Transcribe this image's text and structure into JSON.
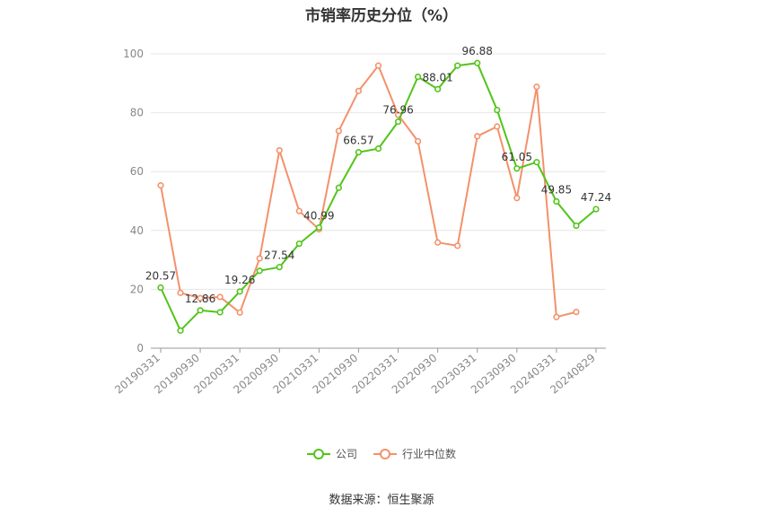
{
  "chart_data": {
    "type": "line",
    "title": "市销率历史分位（%）",
    "ylim": [
      0,
      100
    ],
    "yticks": [
      0,
      20,
      40,
      60,
      80,
      100
    ],
    "x": [
      "20190331",
      "20190630",
      "20190930",
      "20191231",
      "20200331",
      "20200630",
      "20200930",
      "20201231",
      "20210331",
      "20210630",
      "20210930",
      "20211231",
      "20220331",
      "20220630",
      "20220930",
      "20221231",
      "20230331",
      "20230630",
      "20230930",
      "20231231",
      "20240331",
      "20240630",
      "20240829"
    ],
    "xticks": [
      "20190331",
      "20190930",
      "20200331",
      "20200930",
      "20210331",
      "20210930",
      "20220331",
      "20220930",
      "20230331",
      "20230930",
      "20240331",
      "20240829"
    ],
    "series": [
      {
        "name": "公司",
        "color": "#52c41a",
        "values": [
          20.57,
          6,
          12.86,
          12.2,
          19.26,
          26.3,
          27.54,
          35.5,
          40.99,
          54.5,
          66.57,
          67.8,
          76.96,
          92.2,
          88.01,
          96.0,
          96.88,
          80.9,
          61.05,
          63.2,
          49.85,
          41.6,
          47.24
        ]
      },
      {
        "name": "行业中位数",
        "color": "#f4916b",
        "values": [
          55.3,
          18.8,
          17.0,
          17.4,
          12.1,
          30.5,
          67.2,
          46.6,
          40.4,
          73.8,
          87.4,
          96.0,
          79.3,
          70.3,
          35.9,
          34.8,
          72.0,
          75.3,
          51.0,
          88.8,
          10.6,
          12.3,
          null
        ]
      }
    ],
    "data_labels": [
      {
        "series": 0,
        "index": 0,
        "text": "20.57"
      },
      {
        "series": 0,
        "index": 2,
        "text": "12.86"
      },
      {
        "series": 0,
        "index": 4,
        "text": "19.26"
      },
      {
        "series": 0,
        "index": 6,
        "text": "27.54"
      },
      {
        "series": 0,
        "index": 8,
        "text": "40.99"
      },
      {
        "series": 0,
        "index": 10,
        "text": "66.57"
      },
      {
        "series": 0,
        "index": 12,
        "text": "76.96"
      },
      {
        "series": 0,
        "index": 14,
        "text": "88.01"
      },
      {
        "series": 0,
        "index": 16,
        "text": "96.88"
      },
      {
        "series": 0,
        "index": 18,
        "text": "61.05"
      },
      {
        "series": 0,
        "index": 20,
        "text": "49.85"
      },
      {
        "series": 0,
        "index": 22,
        "text": "47.24"
      }
    ],
    "grid": true,
    "legend_position": "bottom"
  },
  "legend": {
    "company_label": "公司",
    "industry_label": "行业中位数"
  },
  "source_text": "数据来源：恒生聚源"
}
